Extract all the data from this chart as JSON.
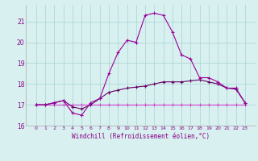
{
  "xlabel": "Windchill (Refroidissement éolien,°C)",
  "x_values": [
    0,
    1,
    2,
    3,
    4,
    5,
    6,
    7,
    8,
    9,
    10,
    11,
    12,
    13,
    14,
    15,
    16,
    17,
    18,
    19,
    20,
    21,
    22,
    23
  ],
  "line1": [
    17.0,
    17.0,
    17.1,
    17.2,
    16.6,
    16.5,
    17.1,
    17.3,
    18.5,
    19.5,
    20.1,
    20.0,
    21.3,
    21.4,
    21.3,
    20.5,
    19.4,
    19.2,
    18.3,
    18.3,
    18.1,
    17.8,
    17.8,
    17.1
  ],
  "line2": [
    17.0,
    17.0,
    17.1,
    17.2,
    16.9,
    16.8,
    17.0,
    17.3,
    17.6,
    17.7,
    17.8,
    17.85,
    17.9,
    18.0,
    18.1,
    18.1,
    18.1,
    18.15,
    18.2,
    18.1,
    18.0,
    17.8,
    17.75,
    17.1
  ],
  "line3": [
    17.0,
    17.0,
    17.0,
    17.0,
    17.0,
    17.0,
    17.0,
    17.0,
    17.0,
    17.0,
    17.0,
    17.0,
    17.0,
    17.0,
    17.0,
    17.0,
    17.0,
    17.0,
    17.0,
    17.0,
    17.0,
    17.0,
    17.0,
    17.0
  ],
  "color1": "#990099",
  "color2": "#660066",
  "color3": "#cc44cc",
  "bg_color": "#d8f0f0",
  "grid_color": "#b0d8d8",
  "text_color": "#880088",
  "ylim": [
    16.0,
    21.8
  ],
  "yticks": [
    16,
    17,
    18,
    19,
    20,
    21
  ],
  "xticks": [
    0,
    1,
    2,
    3,
    4,
    5,
    6,
    7,
    8,
    9,
    10,
    11,
    12,
    13,
    14,
    15,
    16,
    17,
    18,
    19,
    20,
    21,
    22,
    23
  ]
}
